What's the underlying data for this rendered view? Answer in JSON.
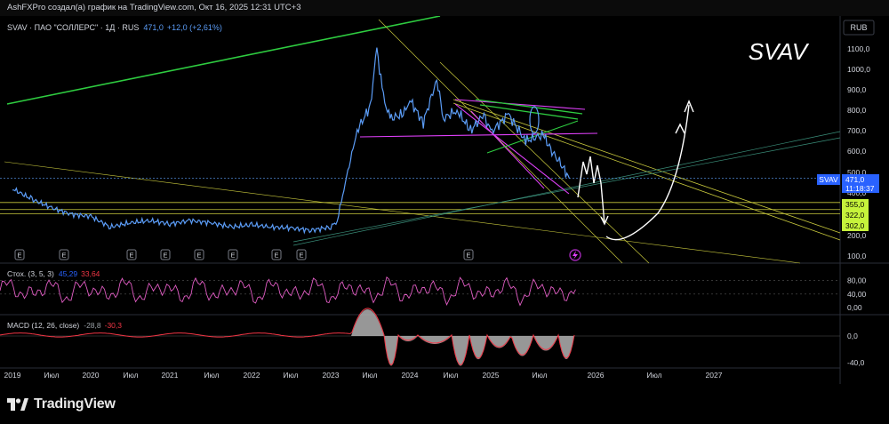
{
  "header": {
    "text": "AshFXPro создал(а) график на TradingView.com, Окт 16, 2025 12:31 UTC+3"
  },
  "legend": {
    "symbol": "SVAV · ПАО \"СОЛЛЕРС\" · 1Д · RUS",
    "price": "471,0",
    "change": "+12,0 (+2,61%)"
  },
  "watermark": "SVAV",
  "currency": "RUB",
  "price_label": {
    "ticker": "SVAV",
    "value": "471,0",
    "timer": "11:18:37"
  },
  "level_labels": [
    "355,0",
    "322,0",
    "302,0"
  ],
  "earnings_marker": "E",
  "stoch": {
    "label": "Стох. (3, 5, 3)",
    "k": "45,29",
    "d": "33,64"
  },
  "macd": {
    "label": "MACD (12, 26, close)",
    "macd": "-28,8",
    "signal": "-30,3"
  },
  "brand": "TradingView",
  "colors": {
    "price_line": "#5b9cf6",
    "green_line": "#2ecc40",
    "magenta_line": "#e040fb",
    "yellow_line": "#c8c83c",
    "level_label_bg": "#c6f33b",
    "stoch_line": "#e05cc3",
    "macd_hist": "#b2b2b2",
    "macd_signal": "#f23645"
  },
  "chart_data": [
    {
      "type": "line",
      "title": "SVAV · ПАО \"СОЛЛЕРС\" · 1Д · RUS",
      "ylabel": "RUB",
      "yticks": [
        "1100,0",
        "1000,0",
        "900,0",
        "800,0",
        "700,0",
        "600,0",
        "500,0",
        "400,0",
        "355,0",
        "322,0",
        "302,0",
        "200,0",
        "100,0"
      ],
      "ylim": [
        50,
        1200
      ],
      "xticks": [
        "2019",
        "Июл",
        "2020",
        "Июл",
        "2021",
        "Июл",
        "2022",
        "Июл",
        "2023",
        "Июл",
        "2024",
        "Июл",
        "2025",
        "Июл",
        "2026",
        "Июл",
        "2027"
      ],
      "series": [
        {
          "x": [
            "2019-01",
            "2019-04",
            "2019-07",
            "2019-10",
            "2020-01",
            "2020-04",
            "2020-07",
            "2020-10",
            "2021-01",
            "2021-04",
            "2021-07",
            "2021-10",
            "2022-01",
            "2022-04",
            "2022-07",
            "2022-10",
            "2023-01",
            "2023-02",
            "2023-03",
            "2023-05",
            "2023-07",
            "2023-08",
            "2023-09",
            "2023-10",
            "2023-12",
            "2024-01",
            "2024-03",
            "2024-05",
            "2024-06",
            "2024-08",
            "2024-10",
            "2024-12",
            "2025-01",
            "2025-03",
            "2025-05",
            "2025-07",
            "2025-08",
            "2025-09",
            "2025-10"
          ],
          "values": [
            420,
            370,
            330,
            300,
            290,
            240,
            260,
            270,
            255,
            270,
            260,
            240,
            250,
            240,
            235,
            225,
            240,
            270,
            420,
            700,
            820,
            1100,
            860,
            760,
            780,
            850,
            740,
            950,
            760,
            800,
            700,
            780,
            690,
            780,
            650,
            680,
            600,
            540,
            471
          ]
        }
      ],
      "horizontal_levels": [
        355,
        322,
        302
      ],
      "current": 471
    },
    {
      "type": "line",
      "title": "Стох. (3, 5, 3)",
      "yticks": [
        "80,00",
        "40,00",
        "0,00"
      ],
      "ylim": [
        0,
        100
      ],
      "series": [
        {
          "name": "K",
          "last": 45.29
        },
        {
          "name": "D",
          "last": 33.64
        }
      ]
    },
    {
      "type": "bar",
      "title": "MACD (12, 26, close)",
      "yticks": [
        "0,0",
        "-40,0"
      ],
      "series": [
        {
          "name": "MACD",
          "last": -28.8
        },
        {
          "name": "Signal",
          "last": -30.3
        }
      ]
    }
  ]
}
